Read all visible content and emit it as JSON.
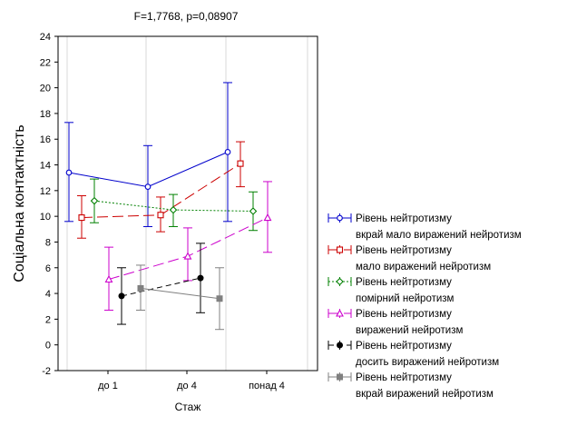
{
  "chart_data": {
    "type": "line",
    "title": "F=1,7768, p=0,08907",
    "xlabel": "Стаж",
    "ylabel": "Соціальна контактність",
    "categories": [
      "до 1",
      "до 4",
      "понад 4"
    ],
    "ylim": [
      -2,
      24
    ],
    "yticks": [
      -2,
      0,
      2,
      4,
      6,
      8,
      10,
      12,
      14,
      16,
      18,
      20,
      22,
      24
    ],
    "error_bars": true,
    "legend_position": "right",
    "series": [
      {
        "name_line1": "Рівень нейтротизму",
        "name_line2": "вкрай мало виражений нейротизм",
        "color": "#0000cc",
        "marker": "circle-open",
        "dash": "solid",
        "values": [
          13.4,
          12.3,
          15.0
        ],
        "lower": [
          9.6,
          9.2,
          9.6
        ],
        "upper": [
          17.3,
          15.5,
          20.4
        ]
      },
      {
        "name_line1": "Рівень нейтротизму",
        "name_line2": "мало виражений нейротизм",
        "color": "#cc0000",
        "marker": "square-open",
        "dash": "long-dash",
        "values": [
          9.9,
          10.1,
          14.1
        ],
        "lower": [
          8.3,
          8.8,
          12.3
        ],
        "upper": [
          11.6,
          11.5,
          15.8
        ]
      },
      {
        "name_line1": "Рівень нейтротизму",
        "name_line2": "помірний нейротизм",
        "color": "#008000",
        "marker": "diamond-open",
        "dash": "dotted",
        "values": [
          11.2,
          10.5,
          10.4
        ],
        "lower": [
          9.5,
          9.2,
          8.9
        ],
        "upper": [
          12.9,
          11.7,
          11.9
        ]
      },
      {
        "name_line1": "Рівень нейтротизму",
        "name_line2": "виражений нейротизм",
        "color": "#cc00cc",
        "marker": "triangle-open",
        "dash": "long-dash",
        "values": [
          5.1,
          6.9,
          9.9
        ],
        "lower": [
          2.7,
          5.0,
          7.2
        ],
        "upper": [
          7.6,
          9.1,
          12.7
        ]
      },
      {
        "name_line1": "Рівень нейтротизму",
        "name_line2": "досить виражений нейротизм",
        "color": "#000000",
        "marker": "circle-filled",
        "dash": "dash",
        "values": [
          3.8,
          5.2,
          null
        ],
        "lower": [
          1.6,
          2.5,
          null
        ],
        "upper": [
          6.0,
          7.9,
          null
        ]
      },
      {
        "name_line1": "Рівень нейтротизму",
        "name_line2": "вкрай виражений нейротизм",
        "color": "#808080",
        "marker": "square-filled",
        "dash": "solid",
        "values": [
          4.4,
          3.6,
          null
        ],
        "lower": [
          2.7,
          1.2,
          null
        ],
        "upper": [
          6.2,
          6.0,
          null
        ]
      }
    ]
  }
}
